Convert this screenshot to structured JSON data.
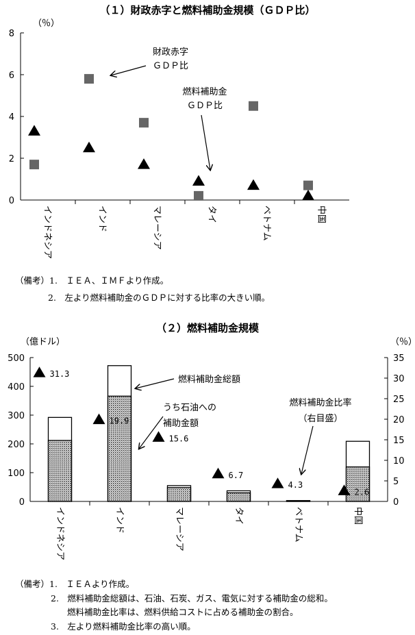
{
  "chart_data": [
    {
      "type": "scatter",
      "title": "（１）財政赤字と燃料補助金規模（ＧＤＰ比）",
      "ylabel": "（％）",
      "ylim": [
        0,
        8
      ],
      "yticks": [
        "0",
        "2",
        "4",
        "6",
        "8"
      ],
      "grid": false,
      "categories": [
        "インドネシア",
        "インド",
        "マレーシア",
        "タイ",
        "ベトナム",
        "中国"
      ],
      "series": [
        {
          "name": "財政赤字ＧＤＰ比",
          "marker": "square",
          "color": "#666666",
          "values": [
            1.7,
            5.8,
            3.7,
            0.2,
            4.5,
            0.7
          ]
        },
        {
          "name": "燃料補助金ＧＤＰ比",
          "marker": "triangle",
          "color": "#000000",
          "values": [
            3.3,
            2.5,
            1.7,
            0.9,
            0.7,
            0.2
          ]
        }
      ],
      "annotations": [
        {
          "lines": [
            "財政赤字",
            "ＧＤＰ比"
          ]
        },
        {
          "lines": [
            "燃料補助金",
            "ＧＤＰ比"
          ]
        }
      ],
      "notes": [
        "（備考）1.　ＩＥＡ、ＩＭＦより作成。",
        "2.　左より燃料補助金のＧＤＰに対する比率の大きい順。"
      ]
    },
    {
      "type": "bar",
      "title": "（２）燃料補助金規模",
      "ylabel": "（億ドル）",
      "y2label": "（％）",
      "ylim": [
        0,
        500
      ],
      "y2lim": [
        0,
        35
      ],
      "yticks": [
        "0",
        "100",
        "200",
        "300",
        "400",
        "500"
      ],
      "y2ticks": [
        "0",
        "5",
        "10",
        "15",
        "20",
        "25",
        "30",
        "35"
      ],
      "grid": false,
      "categories": [
        "インドネシア",
        "インド",
        "マレーシア",
        "タイ",
        "ベトナム",
        "中国"
      ],
      "series": [
        {
          "name": "燃料補助金総額",
          "values": [
            292,
            472,
            55,
            37,
            3,
            209
          ]
        },
        {
          "name": "うち石油への補助金額",
          "values": [
            212,
            366,
            48,
            30,
            2,
            120
          ]
        },
        {
          "name": "燃料補助金比率",
          "axis": "right",
          "marker": "triangle",
          "values": [
            31.3,
            19.9,
            15.6,
            6.7,
            4.3,
            2.6
          ],
          "labels": [
            "31.3",
            "19.9",
            "15.6",
            "6.7",
            "4.3",
            "2.6"
          ]
        }
      ],
      "annotations": [
        {
          "lines": [
            "燃料補助金総額"
          ]
        },
        {
          "lines": [
            "うち石油への",
            "補助金額"
          ]
        },
        {
          "lines": [
            "燃料補助金比率",
            "（右目盛）"
          ]
        }
      ],
      "notes": [
        "（備考）1.　ＩＥＡより作成。",
        "2.　燃料補助金総額は、石油、石炭、ガス、電気に対する補助金の総和。",
        "燃料補助金比率は、燃料供給コストに占める補助金の割合。",
        "3.　左より燃料補助金比率の高い順。"
      ]
    }
  ]
}
